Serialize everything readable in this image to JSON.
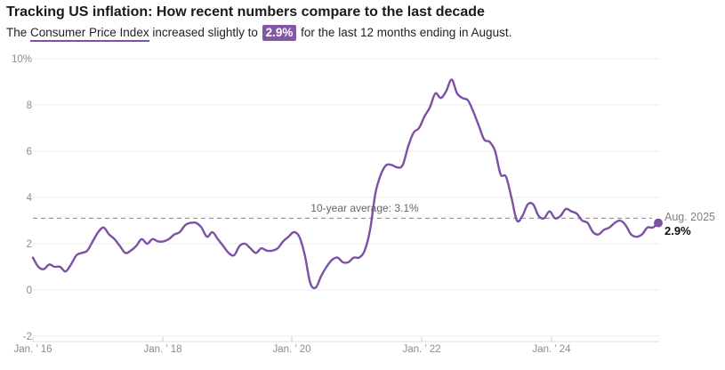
{
  "header": {
    "title": "Tracking US inflation: How recent numbers compare to the last decade",
    "subtitle_prefix": "The ",
    "subtitle_link": "Consumer Price Index",
    "subtitle_mid": " increased slightly to ",
    "subtitle_badge": "2.9%",
    "subtitle_suffix": " for the last 12 months ending in August."
  },
  "chart_data": {
    "type": "line",
    "title": "Tracking US inflation: How recent numbers compare to the last decade",
    "x_start": "Jan 2016",
    "x_end": "Aug 2025",
    "x_frequency": "monthly",
    "series": [
      {
        "name": "CPI 12-month percent change",
        "values": [
          1.4,
          1.0,
          0.9,
          1.1,
          1.0,
          1.0,
          0.8,
          1.1,
          1.5,
          1.6,
          1.7,
          2.1,
          2.5,
          2.7,
          2.4,
          2.2,
          1.9,
          1.6,
          1.7,
          1.9,
          2.2,
          2.0,
          2.2,
          2.1,
          2.1,
          2.2,
          2.4,
          2.5,
          2.8,
          2.9,
          2.9,
          2.7,
          2.3,
          2.5,
          2.2,
          1.9,
          1.6,
          1.5,
          1.9,
          2.0,
          1.8,
          1.6,
          1.8,
          1.7,
          1.7,
          1.8,
          2.1,
          2.3,
          2.5,
          2.3,
          1.5,
          0.3,
          0.1,
          0.6,
          1.0,
          1.3,
          1.4,
          1.2,
          1.2,
          1.4,
          1.4,
          1.7,
          2.6,
          4.2,
          5.0,
          5.4,
          5.4,
          5.3,
          5.4,
          6.2,
          6.8,
          7.0,
          7.5,
          7.9,
          8.5,
          8.3,
          8.6,
          9.1,
          8.5,
          8.3,
          8.2,
          7.7,
          7.1,
          6.5,
          6.4,
          6.0,
          5.0,
          4.9,
          4.0,
          3.0,
          3.2,
          3.7,
          3.7,
          3.2,
          3.1,
          3.4,
          3.1,
          3.2,
          3.5,
          3.4,
          3.3,
          3.0,
          2.9,
          2.5,
          2.4,
          2.6,
          2.7,
          2.9,
          3.0,
          2.8,
          2.4,
          2.3,
          2.4,
          2.7,
          2.7,
          2.9
        ]
      }
    ],
    "ylim": [
      -2,
      10
    ],
    "y_tick_values": [
      10,
      8,
      6,
      4,
      2,
      0,
      -2
    ],
    "y_ticks": {
      "t10": "10%",
      "t8": "8",
      "t6": "6",
      "t4": "4",
      "t2": "2",
      "t0": "0",
      "tm2": "-2"
    },
    "x_ticks": {
      "t16": "Jan. ’ 16",
      "t18": "Jan. ’ 18",
      "t20": "Jan. ’ 20",
      "t22": "Jan. ’ 22",
      "t24": "Jan. ’ 24"
    },
    "average_line": {
      "value": 3.1,
      "label": "10-year average: 3.1%"
    },
    "end_annotation": {
      "date_label": "Aug. 2025",
      "value_label": "2.9%",
      "value": 2.9
    },
    "grid": true,
    "legend": "none",
    "colors": {
      "line": "#7b50a5",
      "end_dot": "#7b50a5",
      "badge_bg": "#8456a8",
      "underline": "#7b50a5",
      "grid": "#ebebeb",
      "axis": "#dddddd",
      "tick": "#cccccc",
      "axis_text": "#8b8b8b",
      "avg_line": "#999999",
      "avg_text": "#666666"
    }
  }
}
